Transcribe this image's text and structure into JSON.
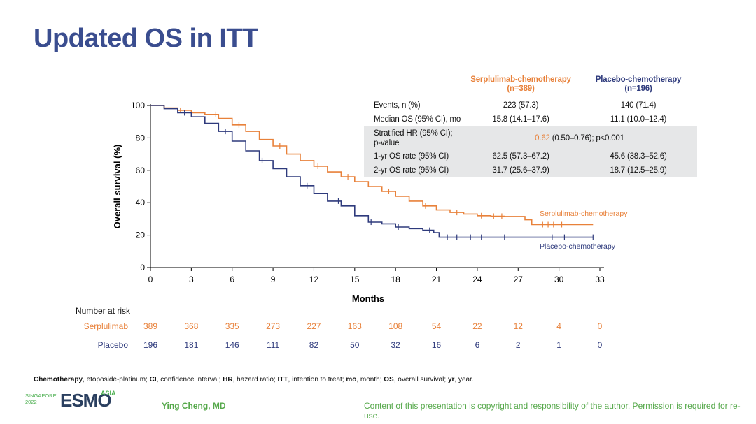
{
  "slide": {
    "title": "Updated OS in ITT",
    "author": "Ying Cheng, MD",
    "copyright": "Content of this presentation is copyright and responsibility of the author. Permission is required for re-use.",
    "logo": {
      "line1": "SINGAPORE",
      "line2": "2022",
      "brand": "ESMO",
      "region": "ASIA"
    },
    "footnote": [
      {
        "bold": "Chemotherapy",
        "text": ", etoposide-platinum; "
      },
      {
        "bold": "CI",
        "text": ", confidence interval; "
      },
      {
        "bold": "HR",
        "text": ", hazard ratio; "
      },
      {
        "bold": "ITT",
        "text": ", intention to treat; "
      },
      {
        "bold": "mo",
        "text": ", month; "
      },
      {
        "bold": "OS",
        "text": ", overall survival; "
      },
      {
        "bold": "yr",
        "text": ", year."
      }
    ]
  },
  "stats_table": {
    "col1_header": "Serplulimab-chemotherapy",
    "col1_n": "(n=389)",
    "col2_header": "Placebo-chemotherapy",
    "col2_n": "(n=196)",
    "rows": [
      {
        "label": "Events, n (%)",
        "v1": "223 (57.3)",
        "v2": "140 (71.4)"
      },
      {
        "label": "Median OS (95% CI), mo",
        "v1": "15.8 (14.1–17.6)",
        "v2": "11.1 (10.0–12.4)"
      },
      {
        "label_l1": "Stratified HR (95% CI);",
        "label_l2": "p-value",
        "hr": "0.62",
        "rest": " (0.50–0.76); p<0.001"
      },
      {
        "label": "1-yr OS rate (95% CI)",
        "v1": "62.5 (57.3–67.2)",
        "v2": "45.6 (38.3–52.6)"
      },
      {
        "label": "2-yr OS rate (95% CI)",
        "v1": "31.7 (25.6–37.9)",
        "v2": "18.7 (12.5–25.9)"
      }
    ]
  },
  "colors": {
    "serplulimab": "#e8813a",
    "placebo": "#2e3a7c",
    "title": "#3a4d8f",
    "green": "#55a84a"
  },
  "chart_data": {
    "type": "line",
    "title": "",
    "xlabel": "Months",
    "ylabel": "Overall survival (%)",
    "xlim": [
      0,
      33
    ],
    "ylim": [
      0,
      100
    ],
    "xticks": [
      0,
      3,
      6,
      9,
      12,
      15,
      18,
      21,
      24,
      27,
      30,
      33
    ],
    "yticks": [
      0,
      20,
      40,
      60,
      80,
      100
    ],
    "series": [
      {
        "name": "Serplulimab-chemotherapy",
        "color": "#e8813a",
        "points": [
          [
            0,
            100
          ],
          [
            1,
            98.5
          ],
          [
            2,
            97
          ],
          [
            3,
            95.5
          ],
          [
            4,
            94.5
          ],
          [
            5,
            92
          ],
          [
            6,
            88
          ],
          [
            7,
            84
          ],
          [
            8,
            79
          ],
          [
            9,
            75
          ],
          [
            10,
            70
          ],
          [
            11,
            66
          ],
          [
            12,
            62.5
          ],
          [
            13,
            59
          ],
          [
            14,
            56
          ],
          [
            15,
            53
          ],
          [
            16,
            50
          ],
          [
            17,
            47
          ],
          [
            18,
            44
          ],
          [
            19,
            41
          ],
          [
            20,
            38
          ],
          [
            21,
            35.5
          ],
          [
            22,
            34
          ],
          [
            23,
            33
          ],
          [
            24,
            32
          ],
          [
            25,
            31.7
          ],
          [
            26,
            31.5
          ],
          [
            27,
            31.5
          ],
          [
            27.5,
            29.5
          ],
          [
            28,
            26.5
          ],
          [
            30,
            26.5
          ],
          [
            32.5,
            26.5
          ]
        ],
        "censor_x": [
          2.2,
          4.8,
          6.5,
          9.5,
          12.3,
          14.5,
          17.5,
          20.2,
          22.5,
          24.3,
          25.2,
          25.8,
          28.8,
          29.2,
          29.6,
          30.2
        ]
      },
      {
        "name": "Placebo-chemotherapy",
        "color": "#2e3a7c",
        "points": [
          [
            0,
            100
          ],
          [
            1,
            98
          ],
          [
            2,
            95.5
          ],
          [
            3,
            93
          ],
          [
            4,
            89
          ],
          [
            5,
            84
          ],
          [
            6,
            78
          ],
          [
            7,
            72
          ],
          [
            8,
            66
          ],
          [
            9,
            61
          ],
          [
            10,
            56
          ],
          [
            11,
            50.5
          ],
          [
            12,
            45.6
          ],
          [
            13,
            41
          ],
          [
            14,
            38
          ],
          [
            15,
            32
          ],
          [
            16,
            28
          ],
          [
            17,
            27
          ],
          [
            18,
            25
          ],
          [
            19,
            24
          ],
          [
            20,
            23
          ],
          [
            20.8,
            21.5
          ],
          [
            21.2,
            18.7
          ],
          [
            23,
            18.7
          ],
          [
            25,
            18.7
          ],
          [
            30,
            18.7
          ],
          [
            32.5,
            18.7
          ]
        ],
        "censor_x": [
          2.5,
          5.5,
          8.2,
          11.5,
          13.8,
          16.2,
          18.2,
          20.5,
          21.8,
          22.5,
          23.5,
          24.3,
          26.0,
          29.5,
          30.4,
          32.5
        ]
      }
    ],
    "legend": [
      "Serplulimab-chemotherapy",
      "Placebo-chemotherapy"
    ],
    "number_at_risk": {
      "header": "Number at risk",
      "rows": [
        {
          "label": "Serplulimab",
          "values": [
            389,
            368,
            335,
            273,
            227,
            163,
            108,
            54,
            22,
            12,
            4,
            0
          ]
        },
        {
          "label": "Placebo",
          "values": [
            196,
            181,
            146,
            111,
            82,
            50,
            32,
            16,
            6,
            2,
            1,
            0
          ]
        }
      ]
    }
  }
}
